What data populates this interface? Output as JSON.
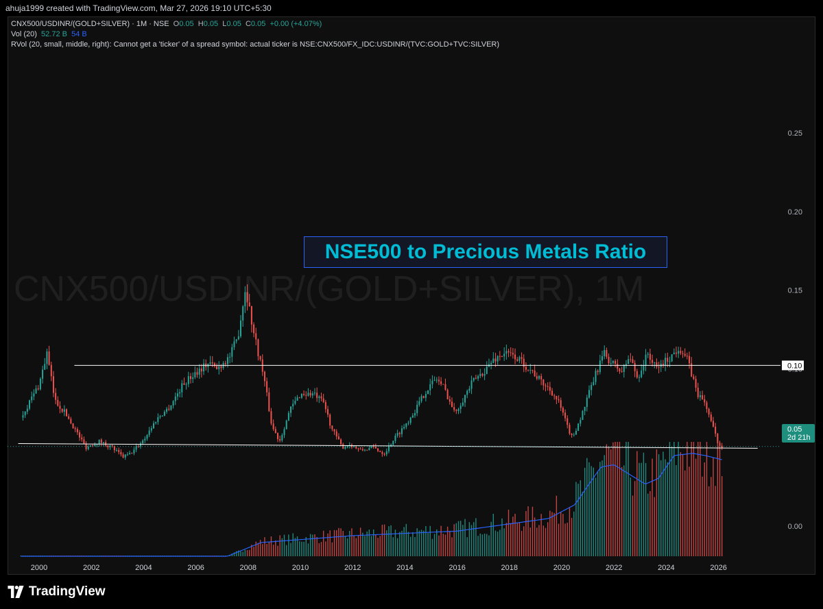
{
  "header": {
    "created_by": "ahuja1999 created with TradingView.com, Mar 27, 2026 19:10 UTC+5:30"
  },
  "legend": {
    "symbol": "CNX500/USDINR/(GOLD+SILVER) · 1M · NSE",
    "o_label": "O",
    "o_value": "0.05",
    "h_label": "H",
    "h_value": "0.05",
    "l_label": "L",
    "l_value": "0.05",
    "c_label": "C",
    "c_value": "0.05",
    "change": "+0.00 (+4.07%)",
    "vol_label": "Vol (20)",
    "vol_value": "52.72 B",
    "vol_ma": "54 B",
    "rvol_error": "RVol (20, small, middle, right): Cannot get a 'ticker' of a spread symbol: actual ticker is NSE:CNX500/FX_IDC:USDINR/(TVC:GOLD+TVC:SILVER)"
  },
  "watermark": "CNX500/USDINR/(GOLD+SILVER), 1M",
  "annotation": "NSE500 to Precious Metals Ratio",
  "price_tag": {
    "value": "0.05",
    "countdown": "2d 21h"
  },
  "level_tag": "0.10",
  "footer": {
    "brand": "TradingView"
  },
  "colors": {
    "up": "#26a69a",
    "down": "#ef5350",
    "vol_ma": "#2962ff",
    "annotation": "#00bcd4"
  },
  "chart_data": {
    "type": "candlestick",
    "interval": "1M",
    "x_ticks": [
      "2000",
      "2002",
      "2004",
      "2006",
      "2008",
      "2010",
      "2012",
      "2014",
      "2016",
      "2018",
      "2020",
      "2022",
      "2024",
      "2026"
    ],
    "y_ticks": [
      "0.25",
      "0.20",
      "0.15",
      "0.10",
      "0.00"
    ],
    "ylim": [
      0,
      0.25
    ],
    "close_series": {
      "x": [
        1999.3,
        2000.0,
        2000.3,
        2000.6,
        2001.0,
        2001.5,
        2001.8,
        2002.3,
        2002.8,
        2003.2,
        2003.5,
        2004.0,
        2004.5,
        2005.0,
        2005.5,
        2006.0,
        2006.5,
        2006.8,
        2007.3,
        2007.6,
        2007.9,
        2008.2,
        2008.6,
        2008.9,
        2009.2,
        2009.6,
        2010.0,
        2010.5,
        2010.9,
        2011.2,
        2011.6,
        2011.9,
        2012.3,
        2012.8,
        2013.2,
        2013.6,
        2014.0,
        2014.4,
        2014.8,
        2015.2,
        2015.5,
        2015.9,
        2016.2,
        2016.6,
        2017.0,
        2017.4,
        2017.8,
        2018.2,
        2018.5,
        2018.9,
        2019.2,
        2019.6,
        2019.9,
        2020.2,
        2020.4,
        2020.8,
        2021.2,
        2021.6,
        2021.9,
        2022.3,
        2022.6,
        2022.9,
        2023.3,
        2023.6,
        2023.9,
        2024.2,
        2024.5,
        2024.8,
        2025.2,
        2025.5,
        2025.8,
        2026.0,
        2026.2
      ],
      "y": [
        0.069,
        0.09,
        0.11,
        0.08,
        0.072,
        0.058,
        0.05,
        0.054,
        0.05,
        0.044,
        0.046,
        0.055,
        0.068,
        0.076,
        0.09,
        0.098,
        0.104,
        0.1,
        0.108,
        0.12,
        0.152,
        0.124,
        0.095,
        0.064,
        0.054,
        0.074,
        0.084,
        0.084,
        0.078,
        0.062,
        0.05,
        0.052,
        0.048,
        0.05,
        0.046,
        0.056,
        0.064,
        0.074,
        0.086,
        0.094,
        0.088,
        0.072,
        0.08,
        0.092,
        0.098,
        0.106,
        0.11,
        0.108,
        0.104,
        0.098,
        0.092,
        0.086,
        0.078,
        0.064,
        0.056,
        0.072,
        0.092,
        0.11,
        0.104,
        0.098,
        0.108,
        0.094,
        0.11,
        0.1,
        0.104,
        0.108,
        0.114,
        0.106,
        0.084,
        0.078,
        0.062,
        0.052,
        0.05
      ]
    },
    "volume_ma": {
      "x": [
        1999.3,
        2007.2,
        2008.5,
        2012.0,
        2016.0,
        2019.5,
        2020.5,
        2021.5,
        2022.0,
        2023.2,
        2023.7,
        2024.3,
        2025.0,
        2025.5,
        2026.2
      ],
      "y_rel": [
        0.0,
        0.0,
        0.12,
        0.18,
        0.22,
        0.33,
        0.45,
        0.78,
        0.8,
        0.63,
        0.68,
        0.88,
        0.9,
        0.88,
        0.84
      ]
    },
    "horizontal_levels": [
      0.1
    ],
    "trendline": {
      "from": [
        1999.2,
        0.0525
      ],
      "to": [
        2027.5,
        0.0495
      ]
    },
    "last_price": 0.05
  }
}
